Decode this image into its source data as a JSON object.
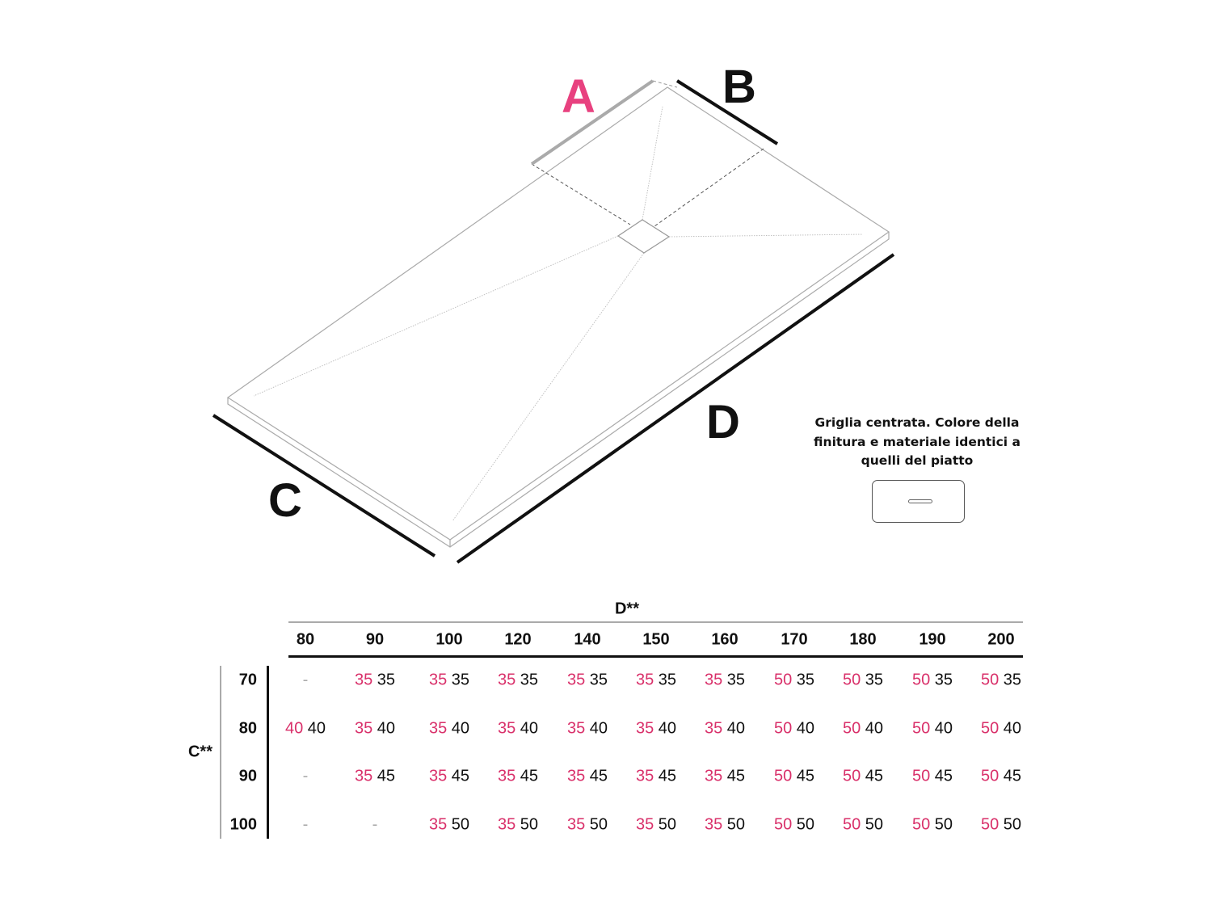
{
  "diagram": {
    "labels": {
      "A": "A",
      "B": "B",
      "C": "C",
      "D": "D"
    },
    "colors": {
      "accent": "#e8417f",
      "value_accent": "#d9306a",
      "text": "#111111"
    }
  },
  "note": {
    "text": "Griglia centrata. Colore della finitura e materiale identici a quelli del piatto",
    "icon": "grate-icon"
  },
  "table": {
    "column_axis_label": "D**",
    "row_axis_label": "C**",
    "columns": [
      "80",
      "90",
      "100",
      "120",
      "140",
      "150",
      "160",
      "170",
      "180",
      "190",
      "200"
    ],
    "rows": [
      {
        "label": "70",
        "cells": [
          "-",
          [
            "35",
            "35"
          ],
          [
            "35",
            "35"
          ],
          [
            "35",
            "35"
          ],
          [
            "35",
            "35"
          ],
          [
            "35",
            "35"
          ],
          [
            "35",
            "35"
          ],
          [
            "50",
            "35"
          ],
          [
            "50",
            "35"
          ],
          [
            "50",
            "35"
          ],
          [
            "50",
            "35"
          ]
        ]
      },
      {
        "label": "80",
        "cells": [
          [
            "40",
            "40"
          ],
          [
            "35",
            "40"
          ],
          [
            "35",
            "40"
          ],
          [
            "35",
            "40"
          ],
          [
            "35",
            "40"
          ],
          [
            "35",
            "40"
          ],
          [
            "35",
            "40"
          ],
          [
            "50",
            "40"
          ],
          [
            "50",
            "40"
          ],
          [
            "50",
            "40"
          ],
          [
            "50",
            "40"
          ]
        ]
      },
      {
        "label": "90",
        "cells": [
          "-",
          [
            "35",
            "45"
          ],
          [
            "35",
            "45"
          ],
          [
            "35",
            "45"
          ],
          [
            "35",
            "45"
          ],
          [
            "35",
            "45"
          ],
          [
            "35",
            "45"
          ],
          [
            "50",
            "45"
          ],
          [
            "50",
            "45"
          ],
          [
            "50",
            "45"
          ],
          [
            "50",
            "45"
          ]
        ]
      },
      {
        "label": "100",
        "cells": [
          "-",
          "-",
          [
            "35",
            "50"
          ],
          [
            "35",
            "50"
          ],
          [
            "35",
            "50"
          ],
          [
            "35",
            "50"
          ],
          [
            "35",
            "50"
          ],
          [
            "50",
            "50"
          ],
          [
            "50",
            "50"
          ],
          [
            "50",
            "50"
          ],
          [
            "50",
            "50"
          ]
        ]
      }
    ]
  }
}
